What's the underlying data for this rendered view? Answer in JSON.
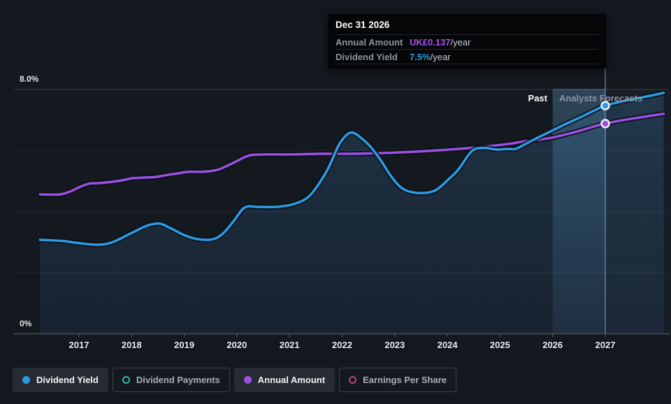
{
  "chart": {
    "y_axis": {
      "top_label": "8.0%",
      "bottom_label": "0%"
    },
    "x_axis": {
      "years": [
        "2017",
        "2018",
        "2019",
        "2020",
        "2021",
        "2022",
        "2023",
        "2024",
        "2025",
        "2026",
        "2027"
      ]
    },
    "past_label": "Past",
    "forecast_label": "Analysts Forecasts",
    "cursor": {
      "date": "Dec 31 2026",
      "axis_year": 2027.0,
      "forecast_start_year": 2026.0
    }
  },
  "chart_data": {
    "type": "line",
    "title": "Dividend yield history and forecast",
    "x_unit": "year",
    "y_unit": "percent (dividend yield axis)",
    "ylim": [
      0,
      8
    ],
    "xlim": [
      2016.25,
      2028.15
    ],
    "grid": "horizontal lines every 2%, labels shown only at 8.0% and 0%",
    "legend_position": "bottom",
    "series": [
      {
        "name": "Dividend Yield",
        "color": "#2B9CE4",
        "style": "solid line with area fill below",
        "cursor_value": "7.5%/year",
        "points": [
          [
            2016.26,
            3.07
          ],
          [
            2016.69,
            3.03
          ],
          [
            2017.0,
            2.96
          ],
          [
            2017.36,
            2.91
          ],
          [
            2017.62,
            2.98
          ],
          [
            2017.96,
            3.26
          ],
          [
            2018.29,
            3.53
          ],
          [
            2018.53,
            3.6
          ],
          [
            2018.75,
            3.44
          ],
          [
            2019.02,
            3.21
          ],
          [
            2019.26,
            3.09
          ],
          [
            2019.55,
            3.09
          ],
          [
            2019.75,
            3.3
          ],
          [
            2019.95,
            3.71
          ],
          [
            2020.15,
            4.13
          ],
          [
            2020.41,
            4.15
          ],
          [
            2020.75,
            4.15
          ],
          [
            2021.08,
            4.24
          ],
          [
            2021.34,
            4.45
          ],
          [
            2021.54,
            4.86
          ],
          [
            2021.74,
            5.43
          ],
          [
            2021.94,
            6.19
          ],
          [
            2022.1,
            6.53
          ],
          [
            2022.21,
            6.58
          ],
          [
            2022.34,
            6.44
          ],
          [
            2022.54,
            6.12
          ],
          [
            2022.74,
            5.66
          ],
          [
            2022.94,
            5.13
          ],
          [
            2023.13,
            4.77
          ],
          [
            2023.33,
            4.63
          ],
          [
            2023.6,
            4.61
          ],
          [
            2023.8,
            4.72
          ],
          [
            2024.0,
            5.02
          ],
          [
            2024.2,
            5.36
          ],
          [
            2024.4,
            5.85
          ],
          [
            2024.53,
            6.05
          ],
          [
            2024.73,
            6.08
          ],
          [
            2024.93,
            6.03
          ],
          [
            2025.13,
            6.05
          ],
          [
            2025.29,
            6.05
          ],
          [
            2025.46,
            6.19
          ],
          [
            2025.66,
            6.37
          ],
          [
            2025.99,
            6.65
          ],
          [
            2026.26,
            6.88
          ],
          [
            2026.52,
            7.08
          ],
          [
            2026.79,
            7.31
          ],
          [
            2027.0,
            7.47
          ],
          [
            2027.32,
            7.61
          ],
          [
            2027.65,
            7.72
          ],
          [
            2027.98,
            7.84
          ],
          [
            2028.11,
            7.89
          ]
        ]
      },
      {
        "name": "Annual Amount",
        "color": "#9B50E4",
        "style": "solid line",
        "cursor_value": "UK£0.137/year",
        "note": "plotted in dividend-yield-axis units; equals UK£0.137/year at Dec 31 2026",
        "points": [
          [
            2016.26,
            4.56
          ],
          [
            2016.63,
            4.56
          ],
          [
            2016.83,
            4.65
          ],
          [
            2017.0,
            4.79
          ],
          [
            2017.19,
            4.91
          ],
          [
            2017.4,
            4.93
          ],
          [
            2017.62,
            4.97
          ],
          [
            2017.82,
            5.02
          ],
          [
            2018.02,
            5.09
          ],
          [
            2018.22,
            5.11
          ],
          [
            2018.45,
            5.13
          ],
          [
            2018.69,
            5.2
          ],
          [
            2018.89,
            5.25
          ],
          [
            2019.08,
            5.3
          ],
          [
            2019.35,
            5.3
          ],
          [
            2019.62,
            5.36
          ],
          [
            2019.82,
            5.5
          ],
          [
            2020.01,
            5.66
          ],
          [
            2020.15,
            5.78
          ],
          [
            2020.28,
            5.85
          ],
          [
            2020.55,
            5.87
          ],
          [
            2021.08,
            5.87
          ],
          [
            2021.61,
            5.89
          ],
          [
            2022.14,
            5.89
          ],
          [
            2022.67,
            5.91
          ],
          [
            2023.13,
            5.94
          ],
          [
            2023.6,
            5.98
          ],
          [
            2024.13,
            6.04
          ],
          [
            2024.66,
            6.12
          ],
          [
            2025.19,
            6.22
          ],
          [
            2025.46,
            6.3
          ],
          [
            2025.72,
            6.35
          ],
          [
            2025.99,
            6.42
          ],
          [
            2026.26,
            6.53
          ],
          [
            2026.52,
            6.65
          ],
          [
            2026.79,
            6.79
          ],
          [
            2027.0,
            6.88
          ],
          [
            2027.32,
            6.99
          ],
          [
            2027.65,
            7.08
          ],
          [
            2027.98,
            7.17
          ],
          [
            2028.11,
            7.2
          ]
        ]
      }
    ]
  },
  "tooltip": {
    "title": "Dec 31 2026",
    "rows": [
      {
        "label": "Annual Amount",
        "value": "UK£0.137",
        "suffix": "/year",
        "color": "#A955F0"
      },
      {
        "label": "Dividend Yield",
        "value": "7.5%",
        "suffix": "/year",
        "color": "#2B9CE4"
      }
    ]
  },
  "legend": [
    {
      "label": "Dividend Yield",
      "color": "#2B9CE4",
      "marker": "filled",
      "variant": "solid"
    },
    {
      "label": "Dividend Payments",
      "color": "#34B8A5",
      "marker": "ring",
      "variant": "outlined"
    },
    {
      "label": "Annual Amount",
      "color": "#9B50E4",
      "marker": "filled",
      "variant": "solid"
    },
    {
      "label": "Earnings Per Share",
      "color": "#C2407E",
      "marker": "ring",
      "variant": "outlined"
    }
  ],
  "colors": {
    "background": "#14181F",
    "tooltip_background": "#040608",
    "blue": "#2B9CE4",
    "purple": "#9B50E4",
    "teal": "#34B8A5",
    "pink": "#C2407E"
  }
}
